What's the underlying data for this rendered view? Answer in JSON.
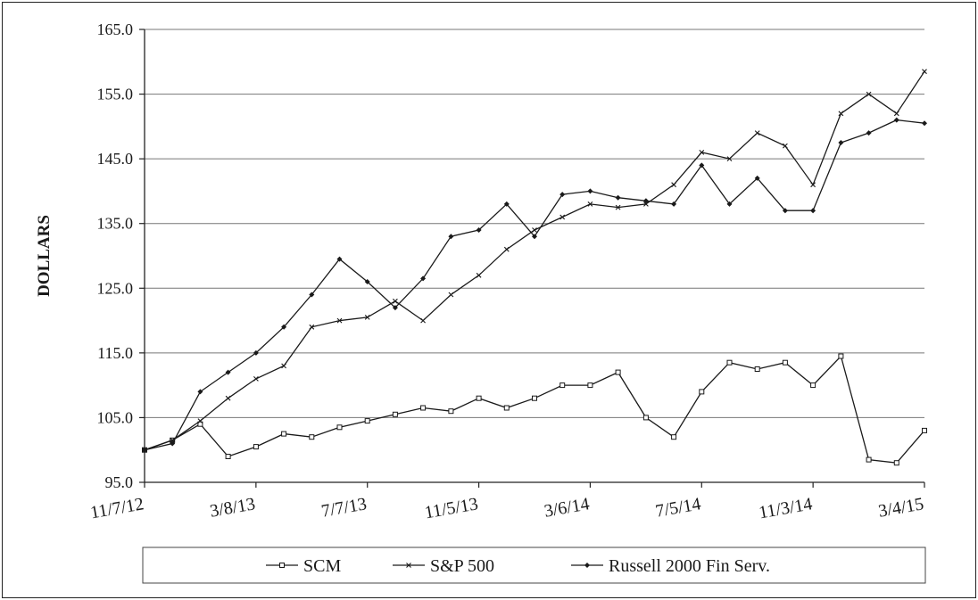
{
  "chart_data": {
    "type": "line",
    "title": "",
    "xlabel": "",
    "ylabel": "DOLLARS",
    "ylim": [
      95,
      165
    ],
    "yticks": [
      95.0,
      105.0,
      115.0,
      125.0,
      135.0,
      145.0,
      155.0,
      165.0
    ],
    "ytick_labels": [
      "95.0",
      "105.0",
      "115.0",
      "125.0",
      "135.0",
      "145.0",
      "155.0",
      "165.0"
    ],
    "xtick_labels": [
      "11/7/12",
      "3/8/13",
      "7/7/13",
      "11/5/13",
      "3/6/14",
      "7/5/14",
      "11/3/14",
      "3/4/15"
    ],
    "grid": "horizontal",
    "legend_position": "bottom",
    "colors": {
      "line": "#1a1a1a",
      "grid": "#777777",
      "marker_fill": "#ffffff"
    },
    "x": [
      "11/7/12",
      "12/7/12",
      "1/7/13",
      "2/7/13",
      "3/8/13",
      "4/7/13",
      "5/7/13",
      "6/7/13",
      "7/7/13",
      "8/6/13",
      "9/5/13",
      "10/5/13",
      "11/5/13",
      "12/5/13",
      "1/5/14",
      "2/5/14",
      "3/6/14",
      "4/5/14",
      "5/5/14",
      "6/5/14",
      "7/5/14",
      "8/4/14",
      "9/3/14",
      "10/3/14",
      "11/3/14",
      "12/3/14",
      "1/3/15",
      "2/3/15",
      "3/4/15"
    ],
    "series": [
      {
        "name": "SCM",
        "marker": "square",
        "values": [
          100.0,
          101.5,
          104.0,
          99.0,
          100.5,
          102.5,
          102.0,
          103.5,
          104.5,
          105.5,
          106.5,
          106.0,
          108.0,
          106.5,
          108.0,
          110.0,
          110.0,
          112.0,
          105.0,
          102.0,
          109.0,
          113.5,
          112.5,
          113.5,
          110.0,
          114.5,
          98.5,
          98.0,
          103.0
        ]
      },
      {
        "name": "S&P 500",
        "marker": "x",
        "values": [
          100.0,
          101.5,
          104.5,
          108.0,
          111.0,
          113.0,
          119.0,
          120.0,
          120.5,
          123.0,
          120.0,
          124.0,
          127.0,
          131.0,
          134.0,
          136.0,
          138.0,
          137.5,
          138.0,
          141.0,
          146.0,
          145.0,
          149.0,
          147.0,
          141.0,
          152.0,
          155.0,
          152.0,
          158.5
        ]
      },
      {
        "name": "Russell 2000 Fin Serv.",
        "marker": "diamond",
        "values": [
          100.0,
          101.0,
          109.0,
          112.0,
          115.0,
          119.0,
          124.0,
          129.5,
          126.0,
          122.0,
          126.5,
          133.0,
          134.0,
          138.0,
          133.0,
          139.5,
          140.0,
          139.0,
          138.5,
          138.0,
          144.0,
          138.0,
          142.0,
          137.0,
          137.0,
          147.5,
          149.0,
          151.0,
          150.5
        ]
      }
    ]
  }
}
